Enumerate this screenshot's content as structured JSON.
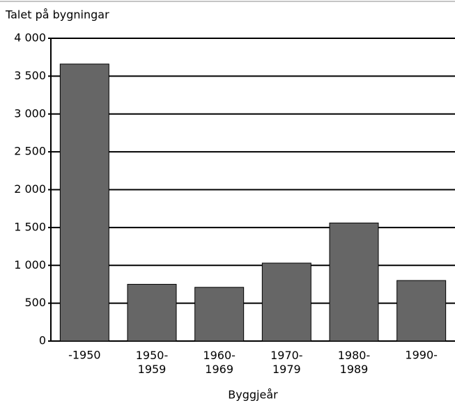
{
  "chart_data": {
    "type": "bar",
    "title": "Talet på bygningar",
    "x_label": "Byggjeår",
    "categories": [
      "-1950",
      "1950-\n1959",
      "1960-\n1969",
      "1970-\n1979",
      "1980-\n1989",
      "1990-"
    ],
    "values": [
      3660,
      750,
      710,
      1030,
      1560,
      800
    ],
    "color": "#666666",
    "ylim": [
      0,
      4000
    ],
    "yticks": [
      0,
      500,
      {
        "value": 1000,
        "label": "1 000"
      },
      {
        "value": 1500,
        "label": "1 500"
      },
      {
        "value": 2000,
        "label": "2 000"
      },
      {
        "value": 2500,
        "label": "2 500"
      },
      {
        "value": 3000,
        "label": "3 000"
      },
      {
        "value": 3500,
        "label": "3 500"
      },
      {
        "value": 4000,
        "label": "4 000"
      }
    ],
    "grid": true
  }
}
